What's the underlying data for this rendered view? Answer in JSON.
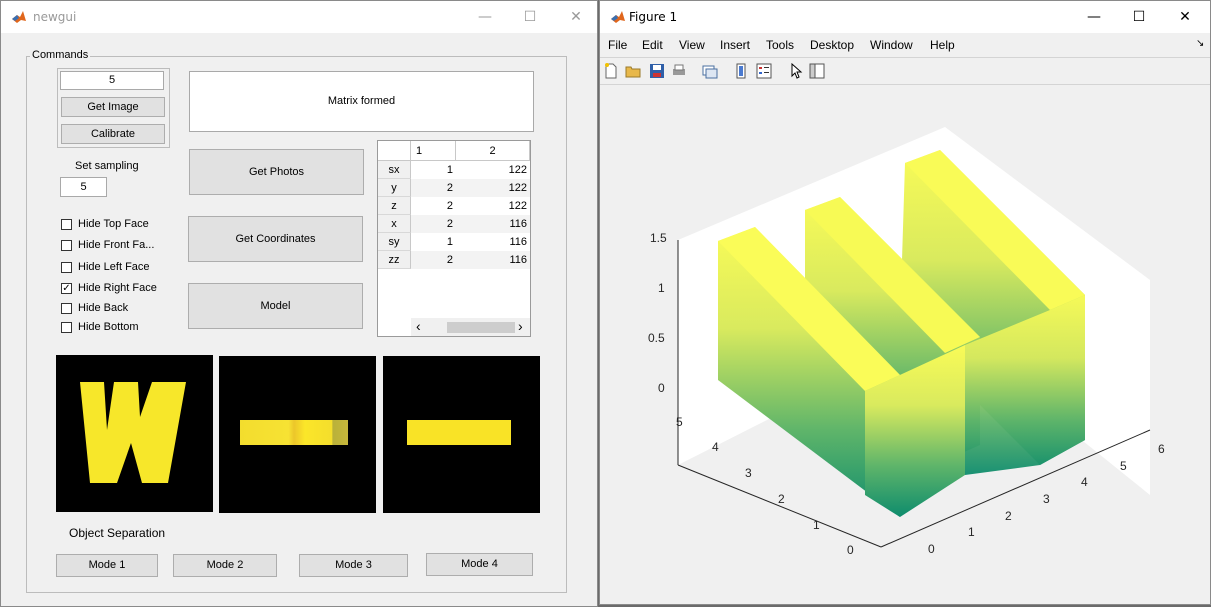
{
  "gui": {
    "title": "newgui",
    "panel_title": "Commands",
    "image_count_value": "5",
    "get_image_label": "Get Image",
    "calibrate_label": "Calibrate",
    "status_text": "Matrix formed",
    "sampling_label": "Set sampling",
    "sampling_value": "5",
    "get_photos_label": "Get Photos",
    "get_coordinates_label": "Get Coordinates",
    "model_label": "Model",
    "checkboxes": [
      {
        "label": "Hide Top Face",
        "checked": false
      },
      {
        "label": "Hide Front Fa...",
        "checked": false
      },
      {
        "label": "Hide Left Face",
        "checked": false
      },
      {
        "label": "Hide Right Face",
        "checked": true
      },
      {
        "label": "Hide Back",
        "checked": false
      },
      {
        "label": "Hide Bottom",
        "checked": false
      }
    ],
    "object_separation_label": "Object Separation",
    "modes": [
      "Mode 1",
      "Mode 2",
      "Mode 3",
      "Mode 4"
    ],
    "table": {
      "columns": [
        "1",
        "2"
      ],
      "rows": [
        {
          "name": "sx",
          "c1": "1",
          "c2": "122"
        },
        {
          "name": "y",
          "c1": "2",
          "c2": "122"
        },
        {
          "name": "z",
          "c1": "2",
          "c2": "122"
        },
        {
          "name": "x",
          "c1": "2",
          "c2": "116"
        },
        {
          "name": "sy",
          "c1": "1",
          "c2": "116"
        },
        {
          "name": "zz",
          "c1": "2",
          "c2": "116"
        }
      ],
      "scroll_left": "‹",
      "scroll_right": "›"
    }
  },
  "figure": {
    "title": "Figure 1",
    "menus": [
      "File",
      "Edit",
      "View",
      "Insert",
      "Tools",
      "Desktop",
      "Window",
      "Help"
    ],
    "toolbar_icons": [
      "new-file-icon",
      "open-folder-icon",
      "save-icon",
      "print-icon",
      "link-plot-icon",
      "insert-colorbar-icon",
      "insert-legend-icon",
      "pointer-icon",
      "property-inspector-icon"
    ],
    "colors": {
      "surface_top": "#f9fb57",
      "surface_bottom": "#0e8c6d"
    }
  },
  "chart_data": {
    "type": "surface3d",
    "title": "",
    "z_ticks": [
      "0",
      "0.5",
      "1",
      "1.5"
    ],
    "y_ticks": [
      "0",
      "1",
      "2",
      "3",
      "4",
      "5"
    ],
    "x_ticks": [
      "0",
      "1",
      "2",
      "3",
      "4",
      "5",
      "6"
    ],
    "colormap": "summer",
    "grid": false
  }
}
